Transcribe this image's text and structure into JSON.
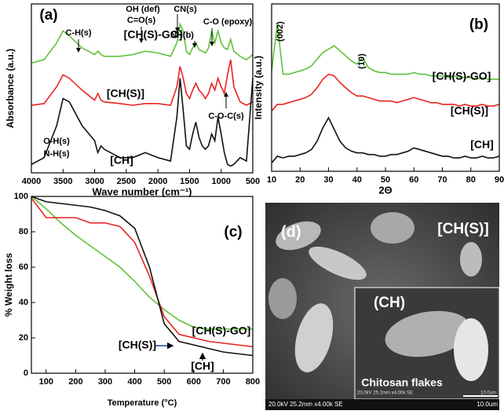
{
  "chart_data": [
    {
      "type": "line",
      "panel_label": "(a)",
      "xlabel": "Wave number (cm⁻¹)",
      "ylabel": "Absorbance (a.u.)",
      "x": [
        4000,
        3800,
        3600,
        3500,
        3400,
        3200,
        3000,
        2950,
        2900,
        2850,
        2600,
        2400,
        2200,
        2000,
        1800,
        1700,
        1650,
        1600,
        1550,
        1500,
        1450,
        1400,
        1350,
        1300,
        1250,
        1200,
        1150,
        1100,
        1050,
        1000,
        950,
        900,
        850,
        800,
        700,
        600,
        500
      ],
      "xlim": [
        4000,
        500
      ],
      "xticks": [
        4000,
        3500,
        3000,
        2500,
        2000,
        1500,
        1000,
        500
      ],
      "ylim": [
        0,
        100
      ],
      "series": [
        {
          "name": "[CH(S)-GO]",
          "color": "#5fc23a",
          "values": [
            65,
            67,
            77,
            84,
            81,
            74,
            70,
            72,
            70,
            69,
            69,
            70,
            72,
            71,
            69,
            77,
            88,
            84,
            72,
            70,
            74,
            77,
            73,
            72,
            71,
            74,
            84,
            77,
            84,
            77,
            74,
            73,
            79,
            72,
            69,
            67,
            70
          ]
        },
        {
          "name": "[CH(S)]",
          "color": "#e8231f",
          "values": [
            40,
            41,
            51,
            58,
            56,
            49,
            43,
            47,
            43,
            42,
            41,
            40,
            41,
            41,
            40,
            51,
            63,
            56,
            47,
            44,
            49,
            53,
            49,
            47,
            44,
            47,
            53,
            49,
            56,
            51,
            47,
            58,
            67,
            51,
            42,
            40,
            42
          ]
        },
        {
          "name": "[CH]",
          "color": "#111111",
          "values": [
            5,
            9,
            28,
            44,
            42,
            28,
            19,
            12,
            16,
            14,
            9,
            9,
            12,
            9,
            7,
            33,
            56,
            37,
            16,
            14,
            23,
            30,
            21,
            16,
            14,
            16,
            23,
            19,
            33,
            23,
            12,
            5,
            4,
            5,
            9,
            7,
            56
          ]
        }
      ],
      "annotations": [
        "C-H(s)",
        "OH (def)",
        "C=O(s)",
        "CN(s)",
        "NH(b)",
        "C-O (epoxy)",
        "C-O-C(s)",
        "O-H(s)",
        "N-H(s)"
      ]
    },
    {
      "type": "line",
      "panel_label": "(b)",
      "xlabel": "2Θ",
      "ylabel": "Intensity (a.u.)",
      "x": [
        10,
        12,
        14,
        16,
        18,
        20,
        22,
        24,
        26,
        28,
        30,
        32,
        34,
        36,
        38,
        40,
        42,
        44,
        46,
        48,
        50,
        52,
        54,
        56,
        58,
        60,
        62,
        64,
        66,
        68,
        70,
        72,
        74,
        76,
        78,
        80,
        82,
        84,
        86,
        88,
        90
      ],
      "xlim": [
        10,
        90
      ],
      "xticks": [
        10,
        20,
        30,
        40,
        50,
        60,
        70,
        80,
        90
      ],
      "ylim": [
        0,
        100
      ],
      "series": [
        {
          "name": "[CH(S)-GO]",
          "color": "#5fc23a",
          "values": [
            60,
            88,
            58,
            58,
            59,
            60,
            61,
            63,
            67,
            71,
            73,
            75,
            72,
            69,
            66,
            64,
            68,
            62,
            60,
            59,
            59,
            58,
            58,
            58,
            58,
            59,
            58,
            58,
            57,
            57,
            57,
            56,
            57,
            56,
            56,
            56,
            55,
            56,
            55,
            55,
            55
          ]
        },
        {
          "name": "[CH(S)]",
          "color": "#e8231f",
          "values": [
            36,
            40,
            40,
            41,
            42,
            43,
            44,
            46,
            50,
            55,
            58,
            57,
            53,
            50,
            47,
            45,
            45,
            44,
            43,
            42,
            42,
            42,
            41,
            42,
            43,
            44,
            43,
            42,
            41,
            41,
            40,
            40,
            40,
            39,
            40,
            39,
            39,
            40,
            39,
            39,
            40
          ]
        },
        {
          "name": "[CH]",
          "color": "#111111",
          "values": [
            5,
            9,
            8,
            9,
            9,
            10,
            11,
            13,
            18,
            26,
            32,
            25,
            18,
            14,
            12,
            11,
            11,
            10,
            10,
            9,
            9,
            10,
            10,
            11,
            12,
            14,
            13,
            12,
            11,
            10,
            9,
            9,
            8,
            8,
            9,
            8,
            8,
            9,
            8,
            8,
            9
          ]
        }
      ],
      "annotations": [
        "(002)",
        "(10)"
      ]
    },
    {
      "type": "line",
      "panel_label": "(c)",
      "xlabel": "Temperature (°C)",
      "ylabel": "% Weight loss",
      "x": [
        50,
        100,
        150,
        200,
        250,
        300,
        350,
        400,
        450,
        500,
        550,
        600,
        650,
        700,
        750,
        800
      ],
      "xlim": [
        50,
        800
      ],
      "xticks": [
        100,
        200,
        300,
        400,
        500,
        600,
        700,
        800
      ],
      "ylim": [
        0,
        100
      ],
      "yticks": [
        0,
        20,
        40,
        60,
        80,
        100
      ],
      "series": [
        {
          "name": "[CH(S)-GO]",
          "color": "#5fc23a",
          "values": [
            100,
            93,
            85,
            78,
            72,
            66,
            60,
            52,
            43,
            36,
            30,
            26,
            25,
            25,
            25,
            25
          ]
        },
        {
          "name": "[CH(S)]",
          "color": "#e8231f",
          "values": [
            99,
            88,
            88,
            88,
            85,
            85,
            83,
            74,
            55,
            32,
            22,
            20,
            18,
            17,
            16,
            15
          ]
        },
        {
          "name": "[CH]",
          "color": "#111111",
          "values": [
            100,
            97,
            96,
            95,
            94,
            92,
            89,
            82,
            60,
            28,
            18,
            16,
            14,
            12,
            11,
            10
          ]
        }
      ],
      "annotations": []
    }
  ],
  "image": {
    "panel_label": "(d)",
    "labels": [
      "[CH(S)]",
      "(CH)",
      "Chitosan flakes"
    ],
    "scale_info": "20.0kV 25.2mm x4.00k SE",
    "scale_bar": "10.0um",
    "inset_scale_info": "20.0kV 25.2mm x4.00k SE",
    "inset_scale_bar": "10.0um"
  }
}
